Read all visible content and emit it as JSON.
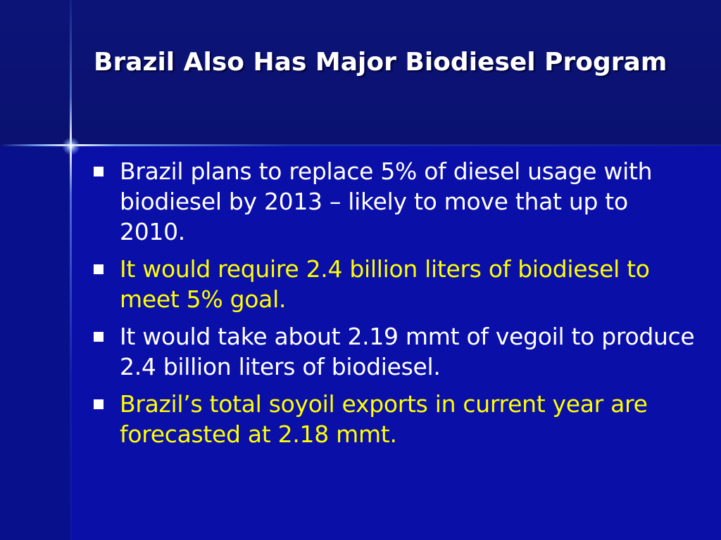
{
  "slide": {
    "title": "Brazil Also Has Major Biodiesel Program",
    "bullets": [
      {
        "text": "Brazil plans to replace 5% of diesel usage with biodiesel by 2013 – likely to move that up to 2010.",
        "color": "#ffffff"
      },
      {
        "text": "It would require 2.4 billion liters of biodiesel to meet 5% goal.",
        "color": "#ffff00"
      },
      {
        "text": "It would take about 2.19 mmt of vegoil to produce 2.4 billion liters of biodiesel.",
        "color": "#ffffff"
      },
      {
        "text": "Brazil’s total soyoil exports in current year are forecasted at 2.18 mmt.",
        "color": "#ffff00"
      }
    ],
    "bullet_marker_icon": "square-bullet-icon",
    "theme": {
      "background": "#0a0fa8",
      "title_band": "#0c1478",
      "title_color": "#ffffff",
      "highlight_color": "#ffff00"
    }
  }
}
